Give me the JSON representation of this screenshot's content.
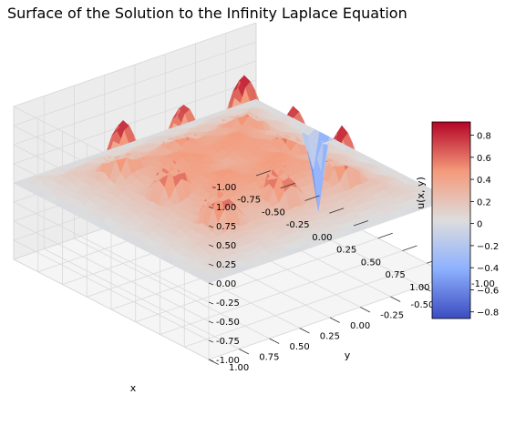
{
  "chart_data": {
    "type": "surface",
    "title": "Surface of the Solution to the Infinity Laplace Equation",
    "xlabel": "x",
    "ylabel": "y",
    "zlabel": "u(x, y)",
    "xlim": [
      -1.0,
      1.0
    ],
    "ylim": [
      -1.0,
      1.0
    ],
    "zlim": [
      -1.0,
      1.0
    ],
    "x_ticks": [
      "-1.00",
      "-0.75",
      "-0.50",
      "-0.25",
      "0.00",
      "0.25",
      "0.50",
      "0.75",
      "1.00"
    ],
    "y_ticks": [
      "-1.00",
      "-0.75",
      "-0.50",
      "-0.25",
      "0.00",
      "0.25",
      "0.50",
      "0.75",
      "1.00"
    ],
    "z_ticks": [
      "-1.00",
      "-0.75",
      "-0.50",
      "-0.25",
      "0.00",
      "0.25",
      "0.50",
      "0.75",
      "1.00"
    ],
    "colormap": "coolwarm",
    "colorbar": {
      "range": [
        -0.86,
        0.92
      ],
      "ticks": [
        "0.8",
        "0.6",
        "0.4",
        "0.2",
        "0",
        "−0.2",
        "−0.4",
        "−0.6",
        "−0.8"
      ],
      "tick_values": [
        0.8,
        0.6,
        0.4,
        0.2,
        0.0,
        -0.2,
        -0.4,
        -0.6,
        -0.8
      ]
    },
    "grid": true,
    "peaks": [
      {
        "x": -0.5,
        "y": -0.5,
        "z": 0.92
      },
      {
        "x": 0.0,
        "y": -0.5,
        "z": 0.85
      },
      {
        "x": 0.5,
        "y": -0.5,
        "z": 0.88
      },
      {
        "x": -0.5,
        "y": 0.0,
        "z": 0.82
      },
      {
        "x": 0.5,
        "y": 0.0,
        "z": 0.85
      },
      {
        "x": -0.5,
        "y": 0.5,
        "z": 0.9
      },
      {
        "x": 0.0,
        "y": 0.5,
        "z": 0.85
      },
      {
        "x": 0.5,
        "y": 0.5,
        "z": 0.9
      }
    ],
    "min_point": {
      "x": -0.3,
      "y": -0.95,
      "z": -0.86
    }
  }
}
